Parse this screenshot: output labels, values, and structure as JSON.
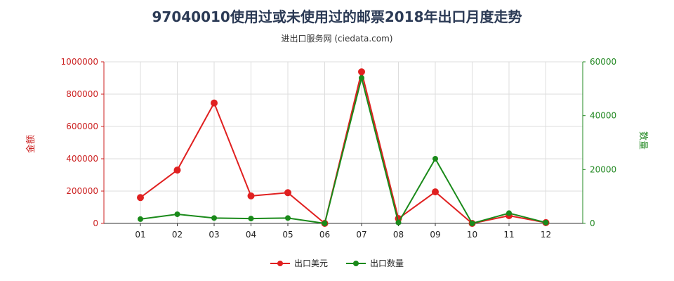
{
  "title": "97040010使用过或未使用过的邮票2018年出口月度走势",
  "subtitle": "进出口服务网 (ciedata.com)",
  "chart_data": {
    "type": "line",
    "categories": [
      "01",
      "02",
      "03",
      "04",
      "05",
      "06",
      "07",
      "08",
      "09",
      "10",
      "11",
      "12"
    ],
    "y_left": {
      "label": "金额",
      "min": 0,
      "max": 1000000,
      "ticks": [
        0,
        200000,
        400000,
        600000,
        800000,
        1000000
      ]
    },
    "y_right": {
      "label": "数量",
      "min": 0,
      "max": 60000,
      "ticks": [
        0,
        20000,
        40000,
        60000
      ]
    },
    "series": [
      {
        "name": "出口美元",
        "axis": "left",
        "color": "#e02020",
        "values": [
          160000,
          330000,
          745000,
          170000,
          190000,
          0,
          938000,
          30000,
          195000,
          0,
          48000,
          5000
        ]
      },
      {
        "name": "出口数量",
        "axis": "right",
        "color": "#1a8a1a",
        "values": [
          1600,
          3400,
          2000,
          1800,
          2000,
          0,
          54000,
          300,
          24000,
          0,
          3800,
          300
        ]
      }
    ],
    "grid": true,
    "legend_position": "bottom"
  }
}
